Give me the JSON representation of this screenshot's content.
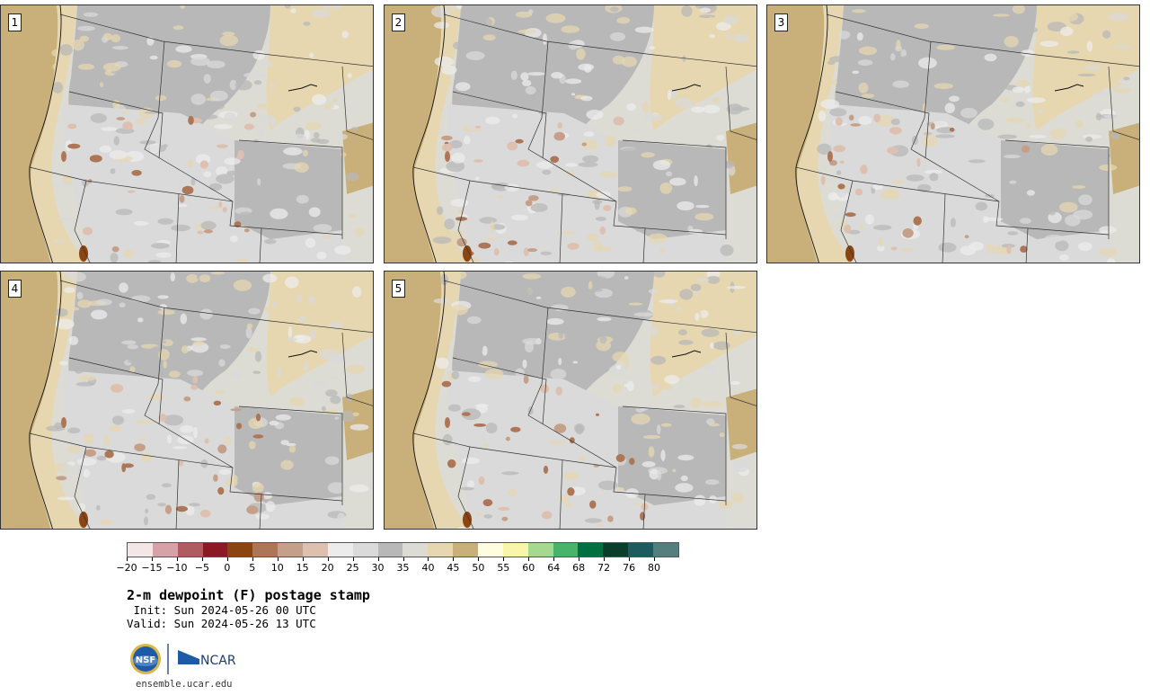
{
  "panels": [
    {
      "label": "1"
    },
    {
      "label": "2"
    },
    {
      "label": "3"
    },
    {
      "label": "4"
    },
    {
      "label": "5"
    }
  ],
  "colorbar": {
    "colors": [
      "#f2e6e6",
      "#d5a3a7",
      "#b05a62",
      "#8b1a24",
      "#8b4513",
      "#ad7657",
      "#c59f88",
      "#dec0b0",
      "#ececec",
      "#dadada",
      "#b8b8b8",
      "#dcdcd4",
      "#e6d7b0",
      "#c9b07a",
      "#fffce0",
      "#f8f6aa",
      "#a4d98f",
      "#4ab36a",
      "#007040",
      "#0a3e2a",
      "#1d5b5e",
      "#557e7e"
    ],
    "labels": [
      "-20",
      "-15",
      "-10",
      "-5",
      "0",
      "5",
      "10",
      "15",
      "20",
      "25",
      "30",
      "35",
      "40",
      "45",
      "50",
      "55",
      "60",
      "64",
      "68",
      "72",
      "76",
      "80"
    ]
  },
  "title": "2-m dewpoint (F) postage stamp",
  "init": " Init: Sun 2024-05-26 00 UTC",
  "valid": "Valid: Sun 2024-05-26 13 UTC",
  "logo": {
    "left": "NSF",
    "right": "NCAR"
  },
  "site": "ensemble.ucar.edu"
}
